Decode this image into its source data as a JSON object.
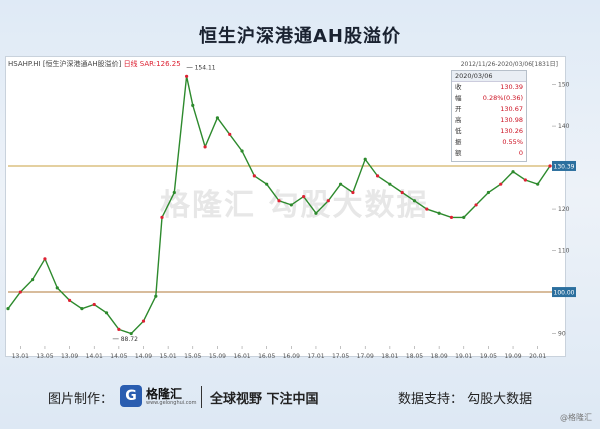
{
  "title": "恒生沪深港通AH股溢价",
  "header": {
    "code": "HSAHP.HI",
    "name": "[恒生沪深港通AH股溢价]",
    "freq": "日线",
    "indicator": "SAR:126.25",
    "range": "2012/11/26-2020/03/06[1831日]"
  },
  "info_box": {
    "date": "2020/03/06",
    "rows": [
      {
        "label": "收",
        "value": "130.39"
      },
      {
        "label": "幅",
        "value": "0.28%(0.36)"
      },
      {
        "label": "开",
        "value": "130.67"
      },
      {
        "label": "高",
        "value": "130.98"
      },
      {
        "label": "低",
        "value": "130.26"
      },
      {
        "label": "振",
        "value": "0.55%"
      },
      {
        "label": "额",
        "value": "0"
      }
    ]
  },
  "watermark": "格隆汇  勾股大数据",
  "footer": {
    "made_by_label": "图片制作：",
    "logo_mark": "G",
    "logo_name": "格隆汇",
    "logo_sub": "www.gelonghui.com",
    "slogan": "全球视野 下注中国",
    "data_label": "数据支持：  勾股大数据"
  },
  "corner_mark": "@格隆汇",
  "chart_data": {
    "type": "line",
    "title": "恒生沪深港通AH股溢价",
    "x_ticks": [
      "13.01",
      "13.05",
      "13.09",
      "14.01",
      "14.05",
      "14.09",
      "15.01",
      "15.05",
      "15.09",
      "16.01",
      "16.05",
      "16.09",
      "17.01",
      "17.05",
      "17.09",
      "18.01",
      "18.05",
      "18.09",
      "19.01",
      "19.05",
      "19.09",
      "20.01"
    ],
    "y_ticks": [
      90,
      100,
      110,
      120,
      130,
      140,
      150
    ],
    "ylim": [
      87,
      154
    ],
    "reference_lines": [
      {
        "value": 130.39,
        "label": "130.39",
        "color": "#c8a040"
      },
      {
        "value": 100.0,
        "label": "100.00",
        "color": "#b07a3a"
      }
    ],
    "annotations": [
      {
        "label": "154.11",
        "x": "15.04",
        "value": 154.11
      },
      {
        "label": "88.72",
        "x": "14.04",
        "value": 88.72
      }
    ],
    "series": [
      {
        "color": "#2d8a2d",
        "x": [
          "12.11",
          "13.01",
          "13.03",
          "13.05",
          "13.07",
          "13.09",
          "13.11",
          "14.01",
          "14.03",
          "14.05",
          "14.07",
          "14.09",
          "14.11",
          "14.12",
          "15.02",
          "15.04",
          "15.05",
          "15.07",
          "15.09",
          "15.11",
          "16.01",
          "16.03",
          "16.05",
          "16.07",
          "16.09",
          "16.11",
          "17.01",
          "17.03",
          "17.05",
          "17.07",
          "17.09",
          "17.11",
          "18.01",
          "18.03",
          "18.05",
          "18.07",
          "18.09",
          "18.11",
          "19.01",
          "19.03",
          "19.05",
          "19.07",
          "19.09",
          "19.11",
          "20.01",
          "20.03"
        ],
        "values": [
          96,
          100,
          103,
          108,
          101,
          98,
          96,
          97,
          95,
          91,
          90,
          93,
          99,
          118,
          124,
          152,
          145,
          135,
          142,
          138,
          134,
          128,
          126,
          122,
          121,
          123,
          119,
          122,
          126,
          124,
          132,
          128,
          126,
          124,
          122,
          120,
          119,
          118,
          118,
          121,
          124,
          126,
          129,
          127,
          126,
          130.39
        ]
      }
    ]
  }
}
